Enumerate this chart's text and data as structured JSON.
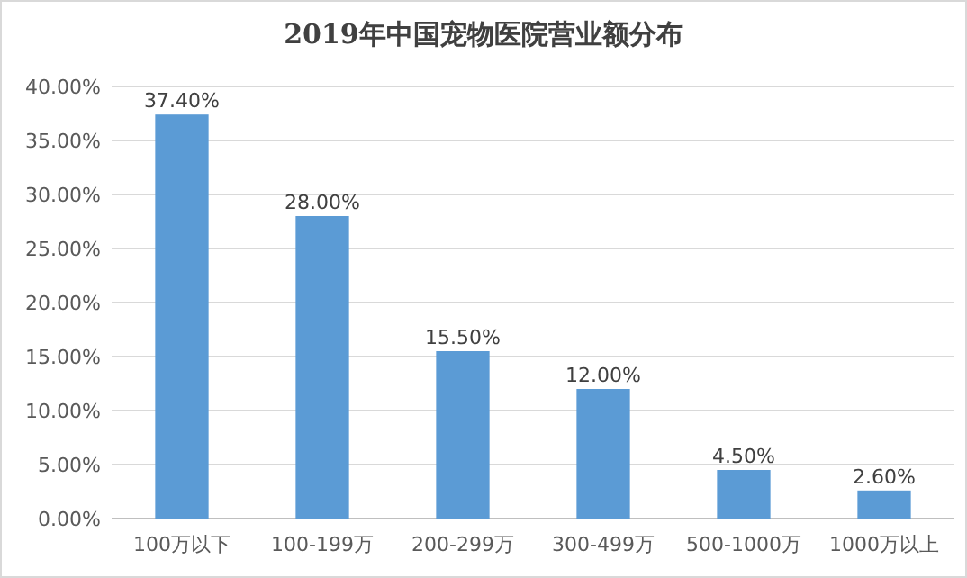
{
  "chart_data": {
    "type": "bar",
    "title": "2019年中国宠物医院营业额分布",
    "categories": [
      "100万以下",
      "100-199万",
      "200-299万",
      "300-499万",
      "500-1000万",
      "1000万以上"
    ],
    "values": [
      37.4,
      28.0,
      15.5,
      12.0,
      4.5,
      2.6
    ],
    "value_labels": [
      "37.40%",
      "28.00%",
      "15.50%",
      "12.00%",
      "4.50%",
      "2.60%"
    ],
    "color": "#5b9bd5",
    "ylim": [
      0,
      40
    ],
    "yticks": [
      {
        "value": 0,
        "label": "0.00%"
      },
      {
        "value": 5,
        "label": "5.00%"
      },
      {
        "value": 10,
        "label": "10.00%"
      },
      {
        "value": 15,
        "label": "15.00%"
      },
      {
        "value": 20,
        "label": "20.00%"
      },
      {
        "value": 25,
        "label": "25.00%"
      },
      {
        "value": 30,
        "label": "30.00%"
      },
      {
        "value": 35,
        "label": "35.00%"
      },
      {
        "value": 40,
        "label": "40.00%"
      }
    ],
    "grid": "y"
  }
}
